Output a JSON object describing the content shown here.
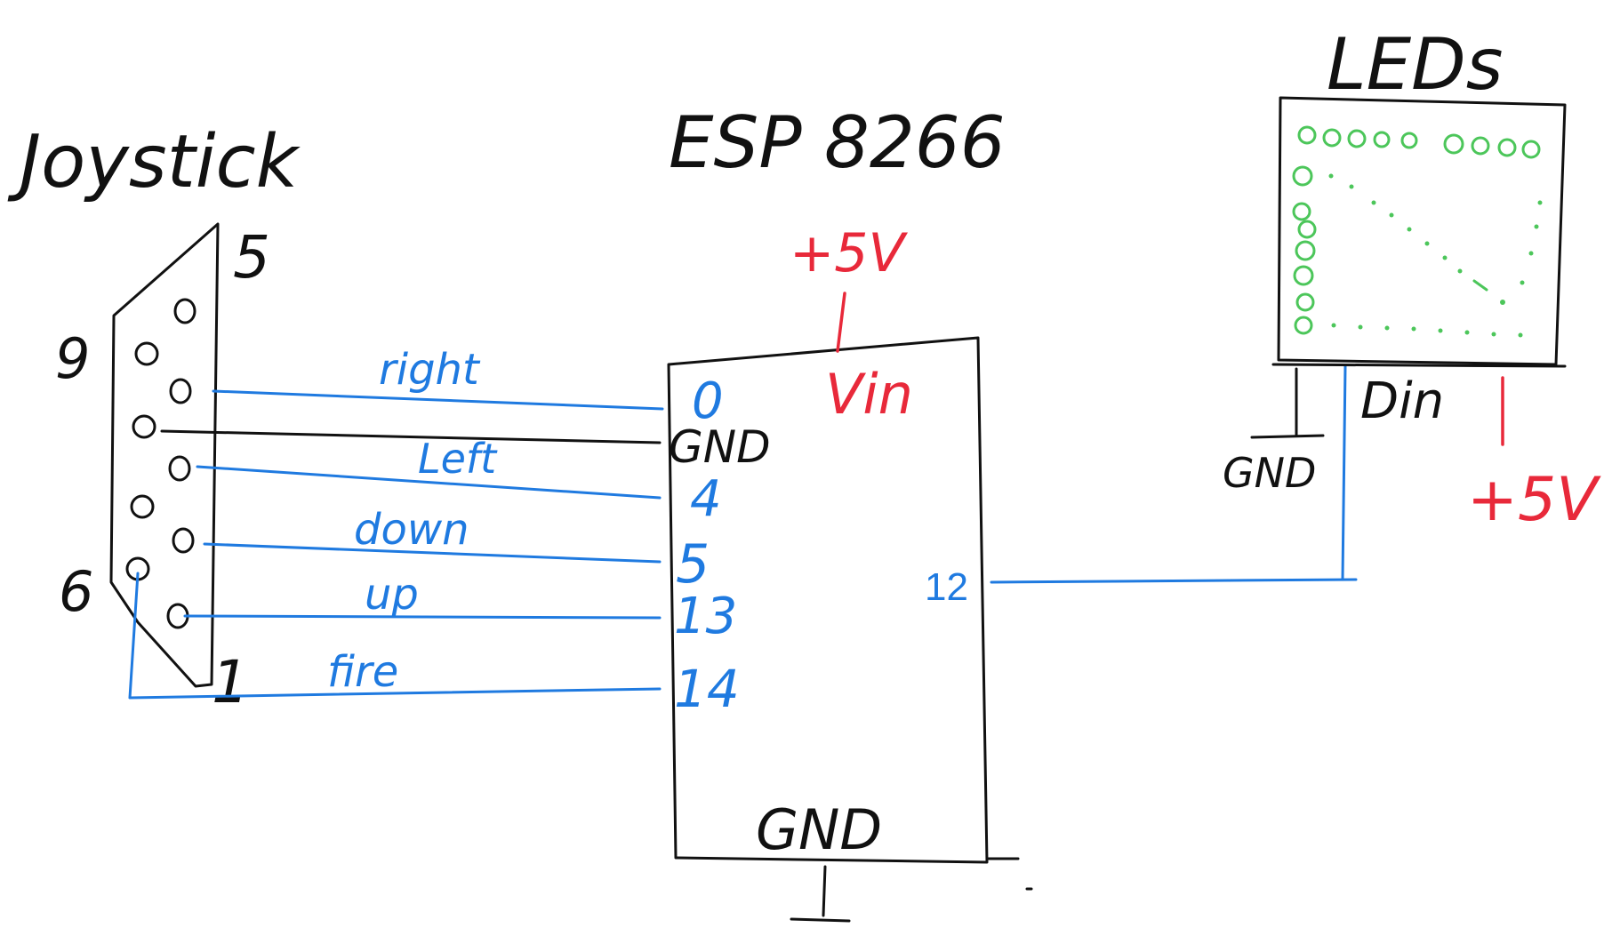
{
  "joystick": {
    "title": "Joystick",
    "pin_labels": {
      "p5": "5",
      "p9": "9",
      "p6": "6",
      "p1": "1"
    },
    "holes": [
      "0",
      "0",
      "0",
      "0",
      "0",
      "0",
      "0",
      "0",
      "0"
    ]
  },
  "esp": {
    "title": "ESP 8266",
    "vin_label": "Vin",
    "supply": "+5V",
    "gnd_side": "GND",
    "gnd_bottom": "GND",
    "pins": [
      "0",
      "4",
      "5",
      "13",
      "14"
    ],
    "out_pin": "12"
  },
  "wires": [
    "right",
    "Left",
    "down",
    "up",
    "fire"
  ],
  "leds": {
    "title": "LEDs",
    "din": "Din",
    "gnd": "GND",
    "supply": "+5V"
  },
  "colors": {
    "ink": "#111111",
    "signal": "#1f7ae0",
    "power": "#e8293a",
    "led": "#4cc65a"
  }
}
